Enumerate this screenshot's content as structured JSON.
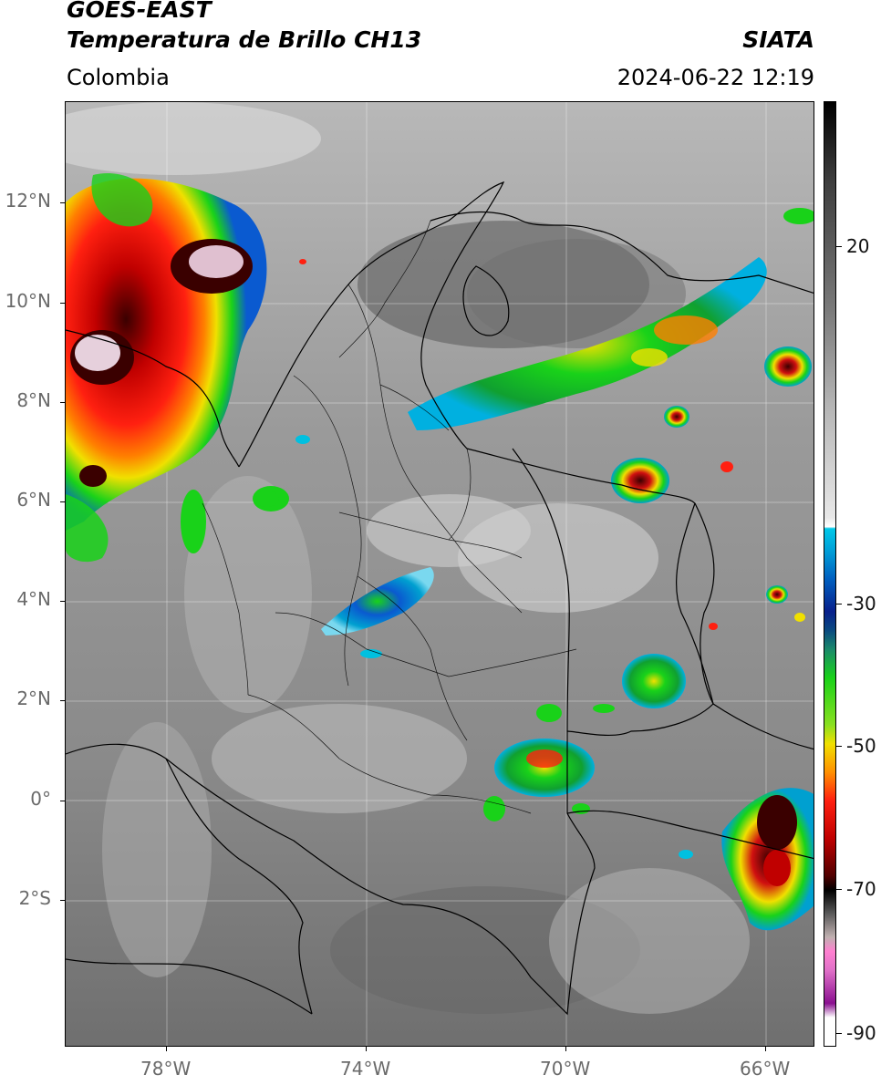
{
  "header": {
    "satellite": "GOES-EAST",
    "product": "Temperatura de Brillo CH13",
    "region": "Colombia",
    "agency": "SIATA",
    "timestamp": "2024-06-22 12:19"
  },
  "map": {
    "lat_labels": [
      "12°N",
      "10°N",
      "8°N",
      "6°N",
      "4°N",
      "2°N",
      "0°",
      "2°S"
    ],
    "lon_labels": [
      "78°W",
      "74°W",
      "70°W",
      "66°W"
    ]
  },
  "colorbar": {
    "labels": [
      "20",
      "-30",
      "-50",
      "-70",
      "-90"
    ]
  },
  "colors": {
    "cold_cloud_red": "#e01010",
    "cloud_green": "#19d219",
    "cloud_yellow": "#f0e000",
    "cloud_blue": "#0a5ad0",
    "cloud_cyan": "#00c0e0",
    "deep_core": "#3a0000",
    "overshoot_pink": "#e0c0d0"
  }
}
